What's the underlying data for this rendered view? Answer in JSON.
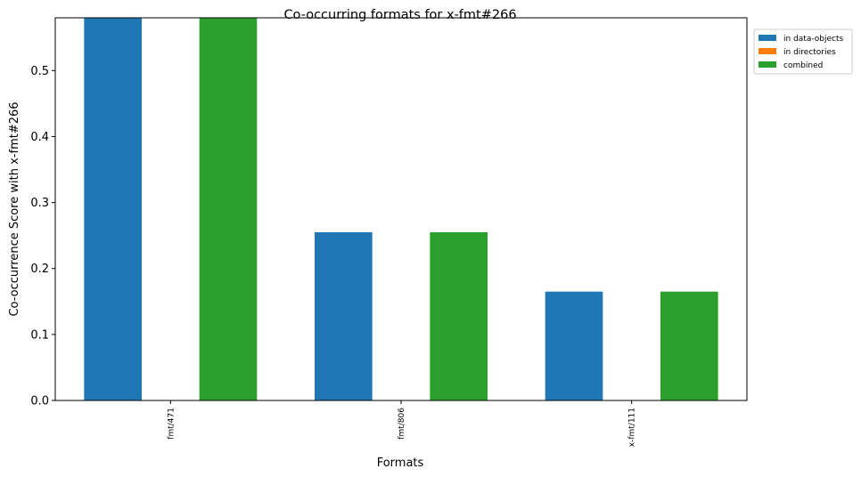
{
  "chart_data": {
    "type": "bar",
    "title": "Co-occurring formats for x-fmt#266",
    "xlabel": "Formats",
    "ylabel": "Co-occurrence Score with x-fmt#266",
    "categories": [
      "fmt/471",
      "fmt/806",
      "x-fmt/111"
    ],
    "series": [
      {
        "name": "in data-objects",
        "color": "#1f77b4",
        "values": [
          0.58,
          0.255,
          0.165
        ]
      },
      {
        "name": "in directories",
        "color": "#ff7f0e",
        "values": [
          0.0,
          0.0,
          0.0
        ]
      },
      {
        "name": "combined",
        "color": "#2ca02c",
        "values": [
          0.58,
          0.255,
          0.165
        ]
      }
    ],
    "ylim": [
      0,
      0.58
    ],
    "yticks": [
      0.0,
      0.1,
      0.2,
      0.3,
      0.4,
      0.5
    ],
    "ytick_labels": [
      "0.0",
      "0.1",
      "0.2",
      "0.3",
      "0.4",
      "0.5"
    ],
    "grid": false,
    "legend_position": "outside-top-right"
  }
}
